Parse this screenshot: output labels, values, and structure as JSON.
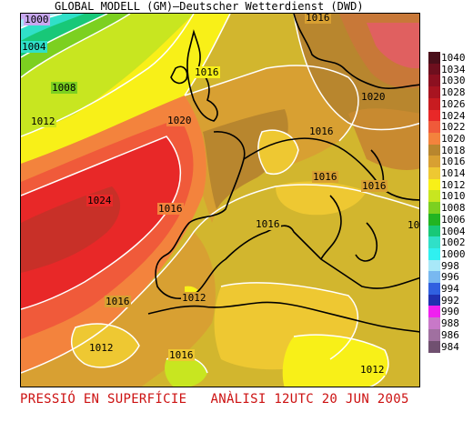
{
  "header": {
    "title": "GLOBAL MODELL (GM)—Deutscher Wetterdienst (DWD)"
  },
  "footer": {
    "caption": "PRESSIÓ EN SUPERFÍCIE   ANÀLISI 12UTC 20 JUN 2005"
  },
  "legend": {
    "items": [
      {
        "label": "1040",
        "color": "#4a0f1a"
      },
      {
        "label": "1034",
        "color": "#6e0f1e"
      },
      {
        "label": "1030",
        "color": "#8c1020"
      },
      {
        "label": "1028",
        "color": "#a81420"
      },
      {
        "label": "1026",
        "color": "#c81c20"
      },
      {
        "label": "1024",
        "color": "#e82828"
      },
      {
        "label": "1022",
        "color": "#f05a3a"
      },
      {
        "label": "1020",
        "color": "#f3833d"
      },
      {
        "label": "1018",
        "color": "#b8862e"
      },
      {
        "label": "1016",
        "color": "#d8a032"
      },
      {
        "label": "1014",
        "color": "#eec832"
      },
      {
        "label": "1012",
        "color": "#f8f018"
      },
      {
        "label": "1010",
        "color": "#c8e620"
      },
      {
        "label": "1008",
        "color": "#7cd020"
      },
      {
        "label": "1006",
        "color": "#22b422"
      },
      {
        "label": "1004",
        "color": "#18c878"
      },
      {
        "label": "1002",
        "color": "#30e0c8"
      },
      {
        "label": "1000",
        "color": "#30f0f0"
      },
      {
        "label": "998",
        "color": "#a8e8f8"
      },
      {
        "label": "996",
        "color": "#78b8f0"
      },
      {
        "label": "994",
        "color": "#3060e0"
      },
      {
        "label": "992",
        "color": "#2030b0"
      },
      {
        "label": "990",
        "color": "#f020f0"
      },
      {
        "label": "988",
        "color": "#c878c8"
      },
      {
        "label": "986",
        "color": "#a070a0"
      },
      {
        "label": "984",
        "color": "#705070"
      }
    ]
  },
  "isobar_labels": [
    {
      "text": "1000"
    },
    {
      "text": "1004"
    },
    {
      "text": "1008"
    },
    {
      "text": "1012"
    },
    {
      "text": "1024"
    },
    {
      "text": "1020"
    },
    {
      "text": "1016"
    },
    {
      "text": "1016"
    },
    {
      "text": "1016"
    },
    {
      "text": "1016"
    },
    {
      "text": "1016"
    },
    {
      "text": "1016"
    },
    {
      "text": "1016"
    },
    {
      "text": "1020"
    },
    {
      "text": "1016"
    },
    {
      "text": "1012"
    },
    {
      "text": "1016"
    },
    {
      "text": "1012"
    },
    {
      "text": "1016"
    },
    {
      "text": "1012"
    },
    {
      "text": "1012"
    },
    {
      "text": "1016"
    },
    {
      "text": "101"
    }
  ]
}
